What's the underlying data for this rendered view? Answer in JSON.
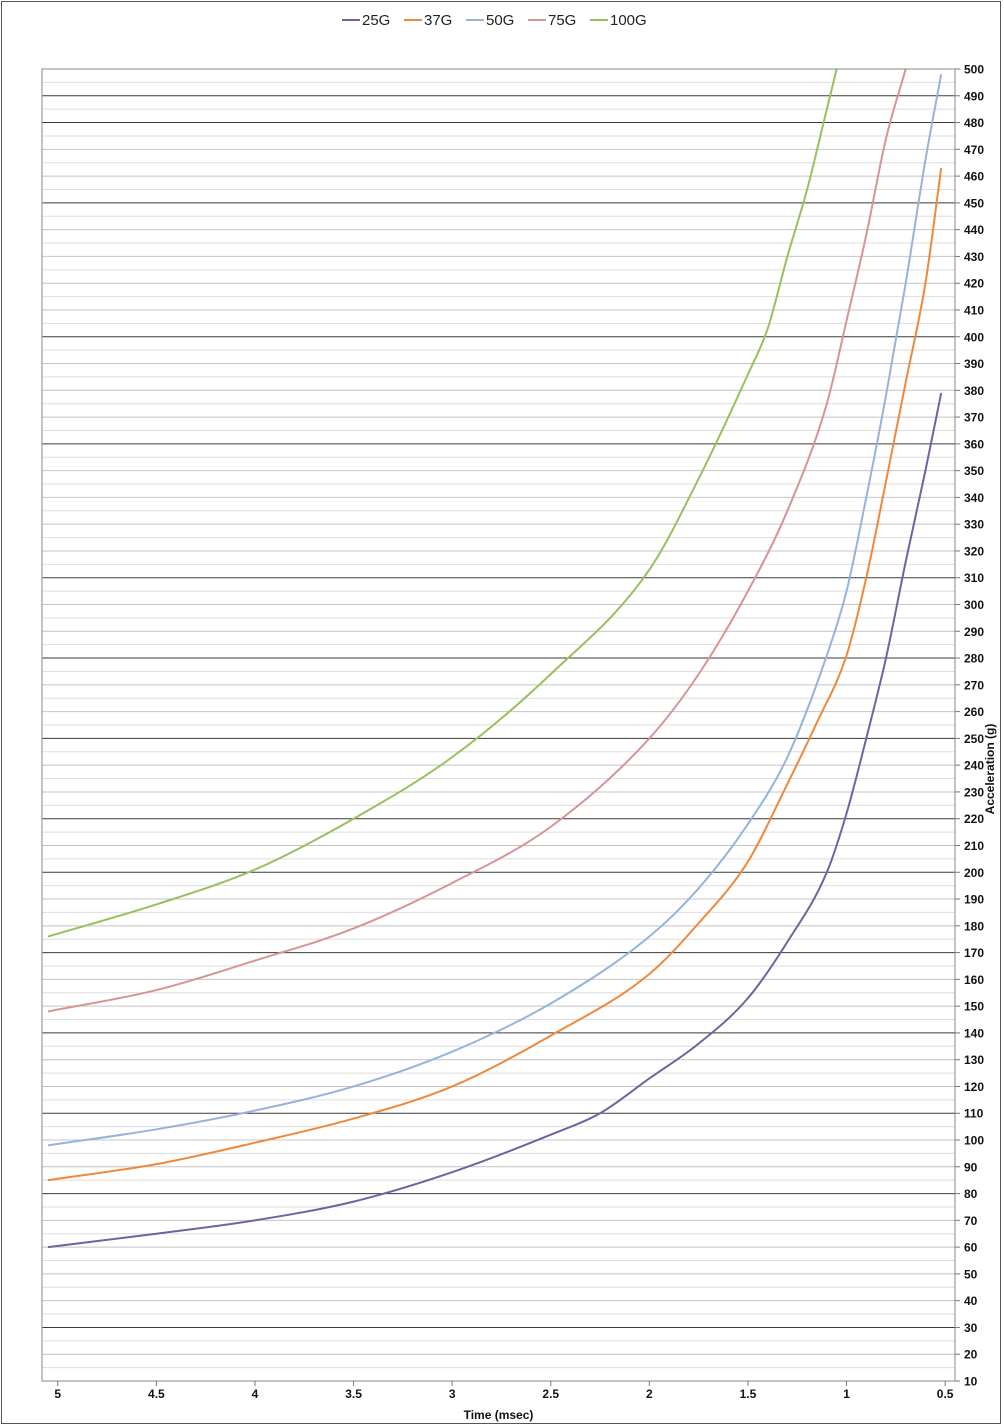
{
  "chart_data": {
    "type": "line",
    "title": "",
    "xlabel": "Time (msec)",
    "ylabel": "Acceleration (g)",
    "x_reversed": true,
    "xlim": [
      0.45,
      5.08
    ],
    "ylim": [
      10,
      500
    ],
    "x_ticks": [
      5,
      4.5,
      4,
      3.5,
      3,
      2.5,
      2,
      1.5,
      1,
      0.5
    ],
    "x_tick_labels": [
      "5",
      "4.5",
      "4",
      "3.5",
      "3",
      "2.5",
      "2",
      "1.5",
      "1",
      "0.5"
    ],
    "y_ticks": [
      10,
      20,
      30,
      40,
      50,
      60,
      70,
      80,
      90,
      100,
      110,
      120,
      130,
      140,
      150,
      160,
      170,
      180,
      190,
      200,
      210,
      220,
      230,
      240,
      250,
      260,
      270,
      280,
      290,
      300,
      310,
      320,
      330,
      340,
      350,
      360,
      370,
      380,
      390,
      400,
      410,
      420,
      430,
      440,
      450,
      460,
      470,
      480,
      490,
      500
    ],
    "y_tick_labels": [
      "10",
      "20",
      "30",
      "40",
      "50",
      "60",
      "70",
      "80",
      "90",
      "100",
      "110",
      "120",
      "130",
      "140",
      "150",
      "160",
      "170",
      "180",
      "190",
      "200",
      "210",
      "220",
      "230",
      "240",
      "250",
      "260",
      "270",
      "280",
      "290",
      "300",
      "310",
      "320",
      "330",
      "340",
      "350",
      "360",
      "370",
      "380",
      "390",
      "400",
      "410",
      "420",
      "430",
      "440",
      "450",
      "460",
      "470",
      "480",
      "490",
      "500"
    ],
    "y_axis_position": "right",
    "grid": true,
    "dark_gridlines": [
      30,
      80,
      110,
      140,
      170,
      200,
      220,
      250,
      280,
      310,
      360,
      400,
      450,
      480,
      490
    ],
    "legend_position": "top",
    "series": [
      {
        "name": "25G",
        "color": "#7460a0",
        "x": [
          5.05,
          4.5,
          4.0,
          3.5,
          3.0,
          2.5,
          2.25,
          2.0,
          1.75,
          1.5,
          1.3,
          1.1,
          1.0,
          0.9,
          0.8,
          0.7,
          0.6,
          0.52
        ],
        "y": [
          60,
          65,
          70,
          77,
          88,
          102,
          110,
          123,
          136,
          153,
          174,
          200,
          222,
          250,
          280,
          316,
          350,
          379
        ]
      },
      {
        "name": "37G",
        "color": "#f0883a",
        "x": [
          5.05,
          4.5,
          4.0,
          3.5,
          3.0,
          2.5,
          2.0,
          1.75,
          1.5,
          1.3,
          1.15,
          1.0,
          0.9,
          0.8,
          0.7,
          0.6,
          0.52
        ],
        "y": [
          85,
          91,
          99,
          108,
          120,
          139,
          162,
          181,
          204,
          233,
          256,
          281,
          310,
          346,
          383,
          420,
          463
        ]
      },
      {
        "name": "50G",
        "color": "#94b4dc",
        "x": [
          5.05,
          4.5,
          4.0,
          3.5,
          3.0,
          2.5,
          2.0,
          1.75,
          1.5,
          1.3,
          1.1,
          1.0,
          0.9,
          0.8,
          0.7,
          0.6,
          0.52
        ],
        "y": [
          98,
          104,
          111,
          120,
          133,
          151,
          176,
          194,
          218,
          243,
          281,
          305,
          340,
          378,
          420,
          466,
          498
        ]
      },
      {
        "name": "75G",
        "color": "#d89494",
        "x": [
          5.05,
          4.5,
          4.0,
          3.5,
          3.0,
          2.5,
          2.0,
          1.75,
          1.5,
          1.3,
          1.1,
          1.0,
          0.9,
          0.8,
          0.7
        ],
        "y": [
          148,
          156,
          167,
          179,
          196,
          217,
          250,
          274,
          305,
          335,
          375,
          406,
          438,
          474,
          500
        ]
      },
      {
        "name": "100G",
        "color": "#98c05c",
        "x": [
          5.05,
          4.5,
          4.0,
          3.5,
          3.0,
          2.5,
          2.0,
          1.75,
          1.5,
          1.4,
          1.3,
          1.2,
          1.1,
          1.05
        ],
        "y": [
          176,
          188,
          201,
          220,
          243,
          274,
          313,
          347,
          386,
          403,
          430,
          455,
          485,
          500
        ]
      }
    ]
  }
}
